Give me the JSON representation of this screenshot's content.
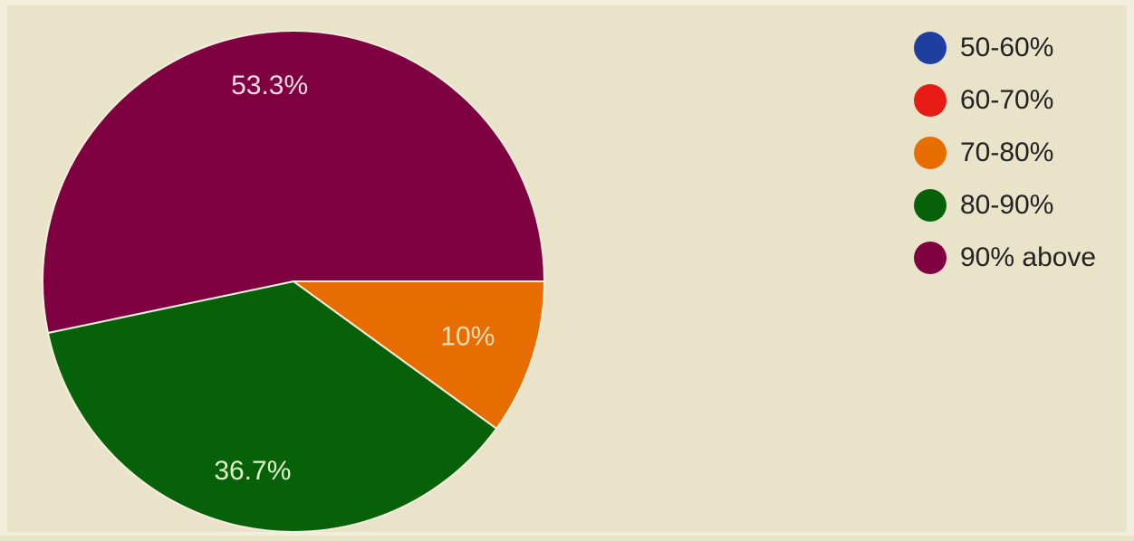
{
  "chart_data": {
    "type": "pie",
    "title": "",
    "legend": "right",
    "categories": [
      "50-60%",
      "60-70%",
      "70-80%",
      "80-90%",
      "90% above"
    ],
    "values": [
      0,
      0,
      10,
      36.7,
      53.3
    ],
    "labels": [
      "",
      "",
      "10%",
      "36.7%",
      "53.3%"
    ],
    "colors": [
      "#1f3fa0",
      "#e61b14",
      "#e86d00",
      "#066108",
      "#7f0041"
    ],
    "label_colors": [
      "#ffffff",
      "#ffffff",
      "#f6dfb4",
      "#dff2c7",
      "#f4dbe6"
    ]
  }
}
